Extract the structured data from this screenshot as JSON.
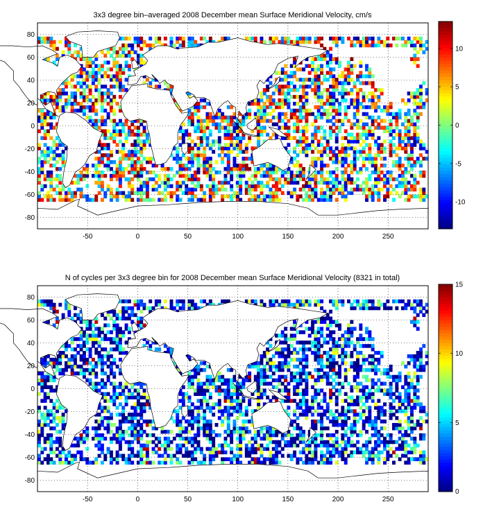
{
  "maps": [
    {
      "id": "velocity",
      "title": "3x3 degree bin–averaged 2008 December mean Surface Meridional Velocity, cm/s",
      "xticks": [
        "-50",
        "0",
        "50",
        "100",
        "150",
        "200",
        "250"
      ],
      "xtick_values": [
        -50,
        0,
        50,
        100,
        150,
        200,
        250
      ],
      "yticks": [
        "80",
        "60",
        "40",
        "20",
        "0",
        "-20",
        "-40",
        "-60",
        "-80"
      ],
      "ytick_values": [
        80,
        60,
        40,
        20,
        0,
        -20,
        -40,
        -60,
        -80
      ],
      "xlim": [
        -100,
        290
      ],
      "ylim": [
        -90,
        90
      ],
      "colorbar": {
        "ticks": [
          "10",
          "5",
          "0",
          "-5",
          "-10"
        ],
        "tick_values": [
          10,
          5,
          0,
          -5,
          -10
        ],
        "range": [
          -13.5,
          13.5
        ]
      }
    },
    {
      "id": "cycles",
      "title": "N of cycles per 3x3 degree bin for 2008 December mean Surface Meridional Velocity (8321 in total)",
      "xticks": [
        "-50",
        "0",
        "50",
        "100",
        "150",
        "200",
        "250"
      ],
      "xtick_values": [
        -50,
        0,
        50,
        100,
        150,
        200,
        250
      ],
      "yticks": [
        "80",
        "60",
        "40",
        "20",
        "0",
        "-20",
        "-40",
        "-60",
        "-80"
      ],
      "ytick_values": [
        80,
        60,
        40,
        20,
        0,
        -20,
        -40,
        -60,
        -80
      ],
      "xlim": [
        -100,
        290
      ],
      "ylim": [
        -90,
        90
      ],
      "colorbar": {
        "ticks": [
          "15",
          "10",
          "5",
          "0"
        ],
        "tick_values": [
          15,
          10,
          5,
          0
        ],
        "range": [
          0,
          15
        ]
      }
    }
  ],
  "colors": {
    "background": "#ffffff",
    "axis": "#000000",
    "land_outline": "#000000",
    "colormap": "jet"
  }
}
